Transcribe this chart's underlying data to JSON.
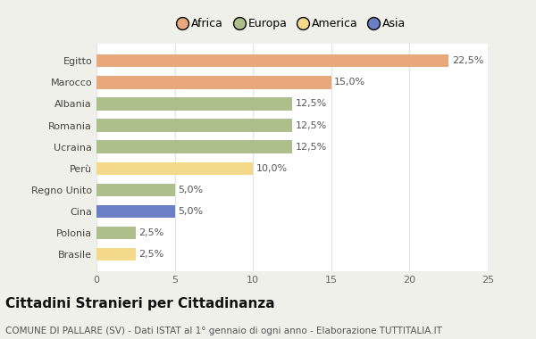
{
  "categories": [
    "Egitto",
    "Marocco",
    "Albania",
    "Romania",
    "Ucraina",
    "Perù",
    "Regno Unito",
    "Cina",
    "Polonia",
    "Brasile"
  ],
  "values": [
    22.5,
    15.0,
    12.5,
    12.5,
    12.5,
    10.0,
    5.0,
    5.0,
    2.5,
    2.5
  ],
  "continents": [
    "Africa",
    "Africa",
    "Europa",
    "Europa",
    "Europa",
    "America",
    "Europa",
    "Asia",
    "Europa",
    "America"
  ],
  "colors": {
    "Africa": "#E8A87C",
    "Europa": "#ADBF8A",
    "America": "#F5D98B",
    "Asia": "#6B7FC4"
  },
  "legend_order": [
    "Africa",
    "Europa",
    "America",
    "Asia"
  ],
  "xlim": [
    0,
    25
  ],
  "xticks": [
    0,
    5,
    10,
    15,
    20,
    25
  ],
  "title": "Cittadini Stranieri per Cittadinanza",
  "subtitle": "COMUNE DI PALLARE (SV) - Dati ISTAT al 1° gennaio di ogni anno - Elaborazione TUTTITALIA.IT",
  "background_color": "#f0f0eb",
  "bar_background": "#ffffff",
  "title_fontsize": 11,
  "subtitle_fontsize": 7.5,
  "label_fontsize": 8,
  "tick_fontsize": 8,
  "legend_fontsize": 9
}
